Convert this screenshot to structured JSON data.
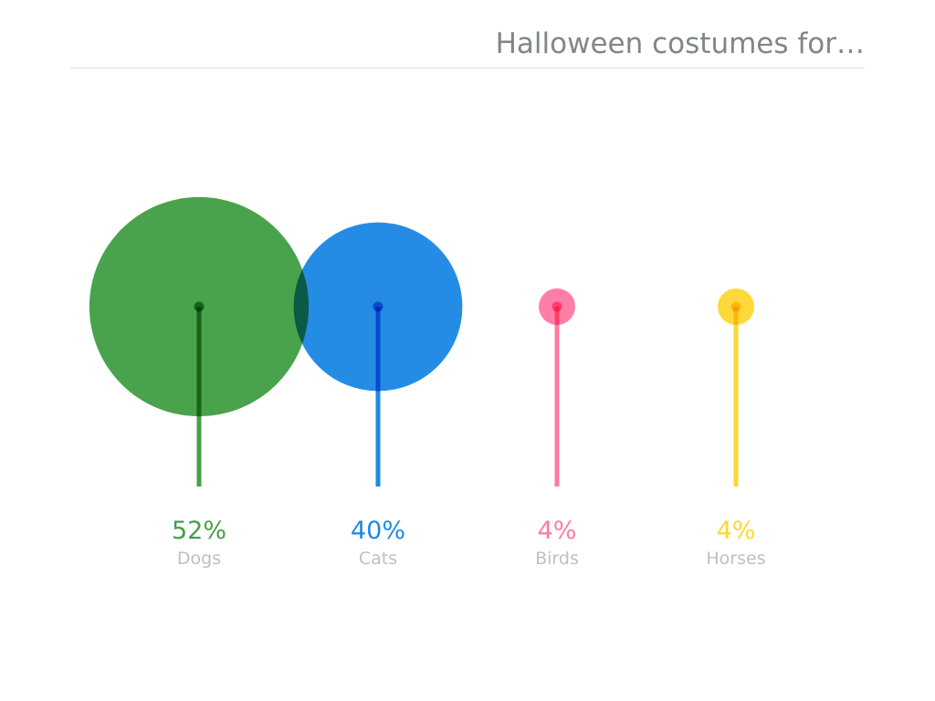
{
  "chart_data": {
    "type": "bubble-lollipop",
    "title": "Halloween costumes for…",
    "categories": [
      "Dogs",
      "Cats",
      "Birds",
      "Horses"
    ],
    "values": [
      52,
      40,
      4,
      4
    ],
    "value_labels": [
      "52%",
      "40%",
      "4%",
      "4%"
    ],
    "colors": [
      "#43a047",
      "#1e88e5",
      "#ff7aa5",
      "#fdd835"
    ],
    "unit": "%",
    "grid": false,
    "legend": "none"
  }
}
